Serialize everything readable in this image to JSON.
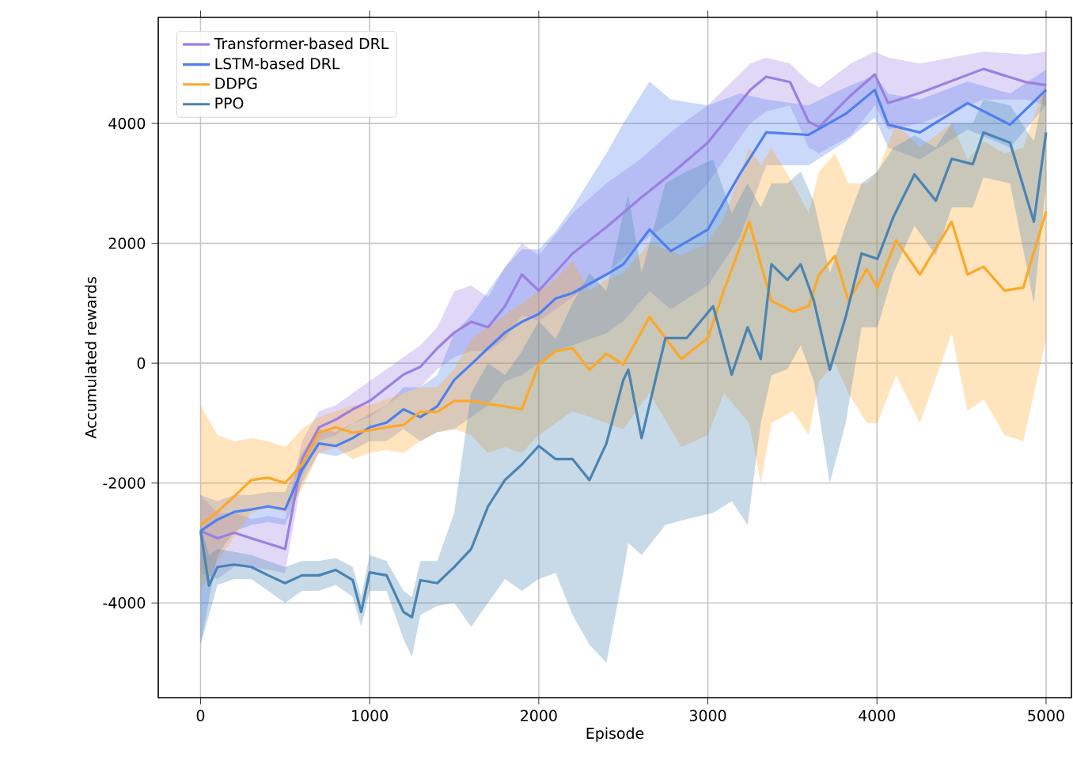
{
  "chart_data": {
    "type": "line",
    "xlabel": "Episode",
    "ylabel": "Accumulated rewards",
    "xlim": [
      -250,
      5150
    ],
    "ylim": [
      -5580,
      5770
    ],
    "xticks": [
      0,
      1000,
      2000,
      3000,
      4000,
      5000
    ],
    "yticks": [
      -4000,
      -2000,
      0,
      2000,
      4000
    ],
    "grid": true,
    "legend": "top left",
    "line_style": "solid",
    "marker": "none",
    "series": [
      {
        "name": "Transformer-based DRL",
        "color": "#9b7fe3",
        "x": [
          0,
          100,
          200,
          300,
          400,
          500,
          600,
          700,
          800,
          900,
          1000,
          1100,
          1200,
          1300,
          1400,
          1500,
          1600,
          1700,
          1800,
          1900,
          2000,
          2200,
          2400,
          2600,
          2800,
          3000,
          3250,
          3345,
          3486,
          3596,
          3658,
          3846,
          3987,
          4066,
          4254,
          4630,
          4880,
          5000
        ],
        "values": [
          -2800,
          -2920,
          -2830,
          -2920,
          -3010,
          -3100,
          -1600,
          -1070,
          -940,
          -770,
          -630,
          -410,
          -190,
          -60,
          250,
          510,
          690,
          600,
          950,
          1480,
          1210,
          1830,
          2270,
          2750,
          3200,
          3680,
          4560,
          4780,
          4690,
          4030,
          3940,
          4470,
          4820,
          4340,
          4510,
          4910,
          4690,
          4640
        ],
        "lower": [
          -3500,
          -3600,
          -3400,
          -3400,
          -3450,
          -3500,
          -1900,
          -1300,
          -1200,
          -1000,
          -900,
          -700,
          -500,
          -400,
          -100,
          100,
          200,
          200,
          400,
          800,
          700,
          1100,
          1500,
          2000,
          2400,
          3000,
          4000,
          4200,
          4300,
          3600,
          3500,
          3800,
          4300,
          3900,
          4000,
          4400,
          4400,
          4300
        ],
        "upper": [
          -2200,
          -2500,
          -2500,
          -2600,
          -2550,
          -2600,
          -1300,
          -800,
          -700,
          -500,
          -300,
          -100,
          100,
          300,
          600,
          1200,
          1300,
          1100,
          1600,
          2000,
          1800,
          2500,
          3000,
          3400,
          3900,
          4300,
          5000,
          5100,
          5000,
          4700,
          4600,
          5000,
          5200,
          5100,
          5000,
          5200,
          5150,
          5200
        ]
      },
      {
        "name": "LSTM-based DRL",
        "color": "#4f7ff0",
        "x": [
          0,
          100,
          200,
          300,
          400,
          500,
          600,
          700,
          800,
          900,
          1000,
          1100,
          1200,
          1300,
          1400,
          1500,
          1600,
          1700,
          1800,
          1900,
          2000,
          2100,
          2200,
          2400,
          2500,
          2655,
          2781,
          3000,
          3188,
          3345,
          3596,
          3815,
          3987,
          4066,
          4254,
          4536,
          4787,
          5000
        ],
        "values": [
          -2800,
          -2610,
          -2480,
          -2440,
          -2390,
          -2440,
          -1780,
          -1340,
          -1380,
          -1250,
          -1070,
          -990,
          -770,
          -900,
          -720,
          -280,
          -20,
          250,
          510,
          690,
          820,
          1080,
          1170,
          1480,
          1650,
          2230,
          1870,
          2230,
          3150,
          3850,
          3810,
          4160,
          4560,
          3980,
          3850,
          4340,
          3980,
          4560
        ],
        "lower": [
          -4700,
          -3200,
          -2800,
          -2700,
          -2650,
          -2700,
          -2000,
          -1500,
          -1550,
          -1450,
          -1300,
          -1300,
          -1100,
          -1300,
          -1150,
          -1100,
          -900,
          -700,
          -300,
          -200,
          0,
          200,
          300,
          500,
          700,
          1200,
          900,
          1300,
          2100,
          3300,
          3300,
          3700,
          4100,
          3600,
          3400,
          3900,
          3600,
          4300
        ],
        "upper": [
          -2200,
          -2300,
          -2200,
          -2200,
          -2150,
          -2150,
          -1500,
          -1100,
          -1150,
          -1000,
          -850,
          -700,
          -400,
          -400,
          -200,
          500,
          800,
          1200,
          1600,
          1900,
          1900,
          2200,
          2600,
          3500,
          4000,
          4700,
          4400,
          4300,
          4500,
          4400,
          4300,
          4600,
          4800,
          4500,
          4400,
          4700,
          4500,
          4900
        ]
      },
      {
        "name": "DDPG",
        "color": "#ffa726",
        "x": [
          0,
          100,
          200,
          300,
          400,
          500,
          600,
          700,
          800,
          900,
          1000,
          1100,
          1200,
          1300,
          1400,
          1500,
          1600,
          1700,
          1800,
          1900,
          2000,
          2100,
          2200,
          2300,
          2400,
          2500,
          2655,
          2843,
          3000,
          3094,
          3245,
          3313,
          3376,
          3502,
          3596,
          3658,
          3752,
          3831,
          3940,
          4003,
          4113,
          4254,
          4442,
          4536,
          4630,
          4755,
          4865,
          5000
        ],
        "values": [
          -2700,
          -2480,
          -2220,
          -1950,
          -1910,
          -2000,
          -1690,
          -1160,
          -1070,
          -1160,
          -1120,
          -1070,
          -1030,
          -810,
          -810,
          -630,
          -630,
          -680,
          -720,
          -770,
          -20,
          200,
          250,
          -110,
          160,
          -20,
          770,
          70,
          420,
          1210,
          2360,
          1650,
          1040,
          860,
          950,
          1480,
          1790,
          1040,
          1570,
          1260,
          2050,
          1480,
          2360,
          1480,
          1610,
          1210,
          1260,
          2530
        ],
        "lower": [
          -3800,
          -3300,
          -2900,
          -2500,
          -2400,
          -2500,
          -2100,
          -1500,
          -1400,
          -1600,
          -1500,
          -1450,
          -1500,
          -1300,
          -1150,
          -1100,
          -1200,
          -1500,
          -1400,
          -1500,
          -1200,
          -1000,
          -800,
          -900,
          -1000,
          -1100,
          -500,
          -1400,
          -1200,
          -500,
          -1000,
          -2000,
          -1000,
          -800,
          -1200,
          -300,
          0,
          -500,
          -1000,
          -1000,
          -200,
          -1000,
          500,
          -800,
          -600,
          -1200,
          -1300,
          400
        ],
        "upper": [
          -700,
          -1200,
          -1300,
          -1250,
          -1300,
          -1400,
          -1100,
          -900,
          -800,
          -700,
          -700,
          -600,
          -500,
          -400,
          -400,
          -100,
          400,
          600,
          800,
          1000,
          1200,
          1400,
          1700,
          1200,
          1400,
          1500,
          2000,
          1800,
          2000,
          2400,
          3600,
          3300,
          3600,
          3000,
          2500,
          3200,
          3500,
          3000,
          3000,
          3200,
          4000,
          3600,
          4000,
          3400,
          3700,
          3500,
          3600,
          4700
        ]
      },
      {
        "name": "PPO",
        "color": "#4a84b2",
        "x": [
          0,
          50,
          100,
          200,
          300,
          400,
          500,
          600,
          700,
          800,
          900,
          950,
          1000,
          1100,
          1200,
          1250,
          1300,
          1400,
          1500,
          1600,
          1700,
          1800,
          1900,
          2000,
          2100,
          2200,
          2300,
          2400,
          2500,
          2530,
          2608,
          2749,
          2875,
          3031,
          3141,
          3235,
          3313,
          3376,
          3470,
          3549,
          3627,
          3721,
          3815,
          3909,
          4003,
          4097,
          4222,
          4348,
          4442,
          4567,
          4630,
          4787,
          4928,
          5000
        ],
        "values": [
          -2800,
          -3710,
          -3400,
          -3360,
          -3400,
          -3540,
          -3670,
          -3540,
          -3540,
          -3450,
          -3620,
          -4150,
          -3490,
          -3540,
          -4150,
          -4240,
          -3620,
          -3670,
          -3400,
          -3100,
          -2390,
          -1950,
          -1690,
          -1380,
          -1600,
          -1600,
          -1950,
          -1340,
          -280,
          -110,
          -1250,
          420,
          420,
          950,
          -190,
          600,
          70,
          1650,
          1390,
          1650,
          1040,
          -110,
          770,
          1830,
          1740,
          2440,
          3150,
          2710,
          3410,
          3320,
          3850,
          3680,
          2360,
          3850
        ],
        "lower": [
          -4700,
          -4200,
          -3700,
          -3600,
          -3600,
          -3800,
          -4000,
          -3800,
          -3800,
          -3700,
          -3900,
          -4400,
          -3800,
          -3800,
          -4600,
          -4900,
          -4200,
          -4050,
          -4000,
          -4400,
          -4000,
          -3600,
          -3800,
          -3600,
          -3500,
          -4200,
          -4700,
          -5000,
          -3500,
          -3000,
          -3200,
          -2700,
          -2600,
          -2500,
          -2300,
          -2700,
          -1000,
          -200,
          -100,
          300,
          -300,
          -2000,
          -1000,
          600,
          600,
          1500,
          2300,
          1800,
          2600,
          2600,
          3100,
          3000,
          1000,
          3000
        ],
        "upper": [
          -2700,
          -3200,
          -3100,
          -3150,
          -3200,
          -3300,
          -3400,
          -3300,
          -3300,
          -3250,
          -3400,
          -3900,
          -3200,
          -3300,
          -3800,
          -3900,
          -3300,
          -3300,
          -2500,
          -500,
          0,
          -200,
          200,
          700,
          400,
          1000,
          1500,
          1200,
          2500,
          2800,
          1500,
          3000,
          3200,
          3400,
          2500,
          3000,
          2600,
          3000,
          3000,
          3200,
          2700,
          1500,
          2300,
          3000,
          3200,
          3600,
          3800,
          3600,
          4000,
          4000,
          4400,
          4300,
          3700,
          4700
        ]
      }
    ]
  }
}
